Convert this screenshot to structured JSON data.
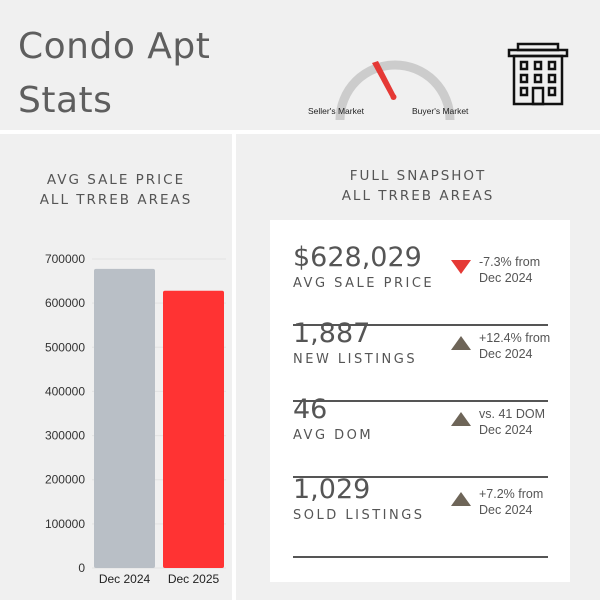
{
  "header": {
    "title_line1": "Condo Apt",
    "title_line2": "Stats",
    "gauge": {
      "left_label": "Seller's Market",
      "right_label": "Buyer's Market",
      "needle_color": "#e53935",
      "arc_color": "#cccccc"
    },
    "building_icon": "building-icon"
  },
  "left_panel": {
    "title_line1": "AVG SALE PRICE",
    "title_line2": "ALL TRREB AREAS"
  },
  "right_panel": {
    "title_line1": "FULL SNAPSHOT",
    "title_line2": "ALL TRREB AREAS"
  },
  "chart_data": {
    "type": "bar",
    "title": "AVG SALE PRICE ALL TRREB AREAS",
    "categories": [
      "Dec 2024",
      "Dec 2025"
    ],
    "values": [
      677500,
      628029
    ],
    "colors": [
      "#b9bfc6",
      "#ff3333"
    ],
    "ylim": [
      0,
      700000
    ],
    "yticks": [
      0,
      100000,
      200000,
      300000,
      400000,
      500000,
      600000,
      700000
    ],
    "grid": true
  },
  "stats": [
    {
      "value": "$628,029",
      "label": "AVG SALE PRICE",
      "change_line1": "-7.3% from",
      "change_line2": "Dec 2024",
      "direction": "down",
      "arrow_color": "#e53935"
    },
    {
      "value": "1,887",
      "label": "NEW LISTINGS",
      "change_line1": "+12.4% from",
      "change_line2": "Dec 2024",
      "direction": "up",
      "arrow_color": "#6e6558"
    },
    {
      "value": "46",
      "label": "AVG DOM",
      "change_line1": "vs. 41 DOM",
      "change_line2": "Dec 2024",
      "direction": "up",
      "arrow_color": "#6e6558"
    },
    {
      "value": "1,029",
      "label": "SOLD LISTINGS",
      "change_line1": "+7.2% from",
      "change_line2": "Dec 2024",
      "direction": "up",
      "arrow_color": "#6e6558"
    }
  ]
}
